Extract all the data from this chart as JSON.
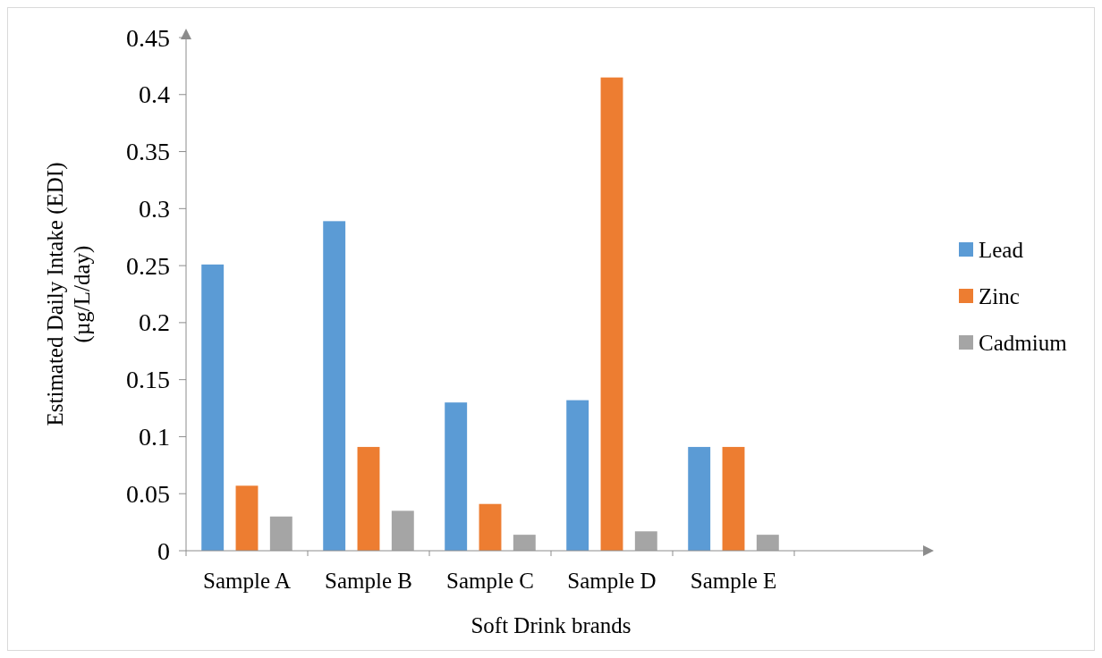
{
  "chart_data": {
    "type": "bar",
    "categories": [
      "Sample A",
      "Sample B",
      "Sample C",
      "Sample D",
      "Sample E",
      null
    ],
    "series": [
      {
        "name": "Lead",
        "color": "#5b9bd5",
        "values": [
          0.251,
          0.289,
          0.13,
          0.132,
          0.091,
          null
        ]
      },
      {
        "name": "Zinc",
        "color": "#ed7d31",
        "values": [
          0.057,
          0.091,
          0.041,
          0.415,
          0.091,
          null
        ]
      },
      {
        "name": "Cadmium",
        "color": "#a5a5a5",
        "values": [
          0.03,
          0.035,
          0.014,
          0.017,
          0.014,
          null
        ]
      }
    ],
    "xlabel": "Soft Drink brands",
    "ylabel": "Estimated Daily Intake (EDI) (µg/L/day)",
    "ylim": [
      0,
      0.45
    ],
    "yticks": [
      0,
      {
        "value": 0.05,
        "label": "0.05"
      },
      {
        "value": 0.1,
        "label": "0.1"
      },
      {
        "value": 0.15,
        "label": "0.15"
      },
      {
        "value": 0.2,
        "label": "0.2"
      },
      {
        "value": 0.25,
        "label": "0.25"
      },
      {
        "value": 0.3,
        "label": "0.3"
      },
      {
        "value": 0.35,
        "label": "0.35"
      },
      {
        "value": 0.4,
        "label": "0.4"
      },
      0.45
    ],
    "grid": false,
    "legend": "right"
  }
}
